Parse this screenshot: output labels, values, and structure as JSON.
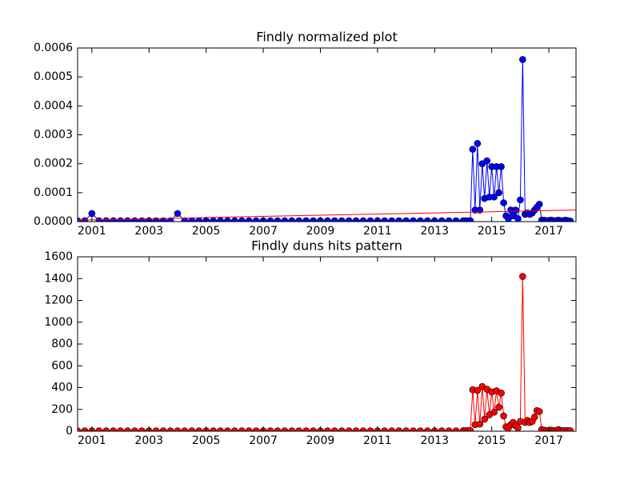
{
  "chart_data": [
    {
      "type": "line",
      "title": "Findly normalized plot",
      "x": [
        2000.5,
        2000.75,
        2001,
        2001.25,
        2001.5,
        2001.75,
        2002,
        2002.25,
        2002.5,
        2002.75,
        2003,
        2003.25,
        2003.5,
        2003.75,
        2004,
        2004.25,
        2004.5,
        2004.75,
        2005,
        2005.25,
        2005.5,
        2005.75,
        2006,
        2006.25,
        2006.5,
        2006.75,
        2007,
        2007.25,
        2007.5,
        2007.75,
        2008,
        2008.25,
        2008.5,
        2008.75,
        2009,
        2009.25,
        2009.5,
        2009.75,
        2010,
        2010.25,
        2010.5,
        2010.75,
        2011,
        2011.25,
        2011.5,
        2011.75,
        2012,
        2012.25,
        2012.5,
        2012.75,
        2013,
        2013.25,
        2013.5,
        2013.75,
        2014,
        2014.083,
        2014.167,
        2014.25,
        2014.333,
        2014.417,
        2014.5,
        2014.583,
        2014.667,
        2014.75,
        2014.833,
        2014.917,
        2015,
        2015.083,
        2015.167,
        2015.25,
        2015.333,
        2015.417,
        2015.5,
        2015.583,
        2015.667,
        2015.75,
        2015.833,
        2015.917,
        2016,
        2016.083,
        2016.167,
        2016.25,
        2016.333,
        2016.417,
        2016.5,
        2016.583,
        2016.667,
        2016.75,
        2016.833,
        2016.917,
        2017,
        2017.083,
        2017.167,
        2017.25,
        2017.333,
        2017.417,
        2017.5,
        2017.583,
        2017.667,
        2017.75
      ],
      "series": [
        {
          "color": "#0000ff",
          "marker": true,
          "values": [
            3e-06,
            3e-06,
            2.8e-05,
            3e-06,
            3e-06,
            3e-06,
            3e-06,
            3e-06,
            3e-06,
            3e-06,
            3e-06,
            3e-06,
            3e-06,
            3e-06,
            2.8e-05,
            3e-06,
            3e-06,
            3e-06,
            3e-06,
            3e-06,
            3e-06,
            3e-06,
            3e-06,
            3e-06,
            3e-06,
            3e-06,
            3e-06,
            3e-06,
            3e-06,
            3e-06,
            3e-06,
            3e-06,
            3e-06,
            3e-06,
            3e-06,
            3e-06,
            3e-06,
            3e-06,
            3e-06,
            3e-06,
            3e-06,
            3e-06,
            3e-06,
            3e-06,
            3e-06,
            3e-06,
            3e-06,
            3e-06,
            3e-06,
            3e-06,
            3e-06,
            3e-06,
            3e-06,
            3e-06,
            3e-06,
            3e-06,
            3e-06,
            3e-06,
            0.00025,
            4e-05,
            0.00027,
            4e-05,
            0.0002,
            8e-05,
            0.00021,
            8.5e-05,
            0.00019,
            8.5e-05,
            0.00019,
            0.0001,
            0.00019,
            6.5e-05,
            2e-05,
            1e-05,
            4e-05,
            2e-05,
            4e-05,
            1e-05,
            7.5e-05,
            0.00056,
            2.5e-05,
            3e-05,
            2.5e-05,
            3e-05,
            4e-05,
            5e-05,
            6e-05,
            5e-06,
            5e-06,
            3e-06,
            3e-06,
            5e-06,
            3e-06,
            3e-06,
            5e-06,
            3e-06,
            3e-06,
            5e-06,
            3e-06,
            2e-06
          ]
        },
        {
          "color": "#ff0000",
          "marker": false,
          "x": [
            2000.5,
            2017.95
          ],
          "values": [
            5e-06,
            4e-05
          ]
        }
      ],
      "xlim": [
        2000.5,
        2017.95
      ],
      "xticks": [
        2001,
        2003,
        2005,
        2007,
        2009,
        2011,
        2013,
        2015,
        2017
      ],
      "ylim": [
        0,
        0.0006
      ],
      "yticks": [
        {
          "value": 0,
          "label": "0.0000"
        },
        {
          "value": 0.0001,
          "label": "0.0001"
        },
        {
          "value": 0.0002,
          "label": "0.0002"
        },
        {
          "value": 0.0003,
          "label": "0.0003"
        },
        {
          "value": 0.0004,
          "label": "0.0004"
        },
        {
          "value": 0.0005,
          "label": "0.0005"
        },
        {
          "value": 0.0006,
          "label": "0.0006"
        }
      ]
    },
    {
      "type": "line",
      "title": "Findly duns hits pattern",
      "x": [
        2000.5,
        2000.75,
        2001,
        2001.25,
        2001.5,
        2001.75,
        2002,
        2002.25,
        2002.5,
        2002.75,
        2003,
        2003.25,
        2003.5,
        2003.75,
        2004,
        2004.25,
        2004.5,
        2004.75,
        2005,
        2005.25,
        2005.5,
        2005.75,
        2006,
        2006.25,
        2006.5,
        2006.75,
        2007,
        2007.25,
        2007.5,
        2007.75,
        2008,
        2008.25,
        2008.5,
        2008.75,
        2009,
        2009.25,
        2009.5,
        2009.75,
        2010,
        2010.25,
        2010.5,
        2010.75,
        2011,
        2011.25,
        2011.5,
        2011.75,
        2012,
        2012.25,
        2012.5,
        2012.75,
        2013,
        2013.25,
        2013.5,
        2013.75,
        2014,
        2014.083,
        2014.167,
        2014.25,
        2014.333,
        2014.417,
        2014.5,
        2014.583,
        2014.667,
        2014.75,
        2014.833,
        2014.917,
        2015,
        2015.083,
        2015.167,
        2015.25,
        2015.333,
        2015.417,
        2015.5,
        2015.583,
        2015.667,
        2015.75,
        2015.833,
        2015.917,
        2016,
        2016.083,
        2016.167,
        2016.25,
        2016.333,
        2016.417,
        2016.5,
        2016.583,
        2016.667,
        2016.75,
        2016.833,
        2016.917,
        2017,
        2017.083,
        2017.167,
        2017.25,
        2017.333,
        2017.417,
        2017.5,
        2017.583,
        2017.667,
        2017.75
      ],
      "series": [
        {
          "color": "#ff0000",
          "marker": true,
          "values": [
            3,
            3,
            3,
            3,
            3,
            3,
            3,
            3,
            3,
            3,
            3,
            3,
            3,
            3,
            3,
            3,
            3,
            3,
            3,
            3,
            3,
            3,
            3,
            3,
            3,
            3,
            3,
            3,
            3,
            3,
            3,
            3,
            3,
            3,
            3,
            3,
            3,
            3,
            3,
            3,
            3,
            3,
            3,
            3,
            3,
            3,
            3,
            3,
            3,
            3,
            3,
            3,
            3,
            3,
            5,
            5,
            5,
            5,
            380,
            60,
            375,
            65,
            410,
            110,
            385,
            150,
            360,
            175,
            370,
            220,
            350,
            140,
            40,
            30,
            60,
            80,
            50,
            30,
            90,
            1420,
            80,
            100,
            80,
            90,
            130,
            190,
            180,
            15,
            10,
            5,
            5,
            10,
            5,
            5,
            15,
            5,
            5,
            5,
            5,
            5
          ]
        }
      ],
      "xlim": [
        2000.5,
        2017.95
      ],
      "xticks": [
        2001,
        2003,
        2005,
        2007,
        2009,
        2011,
        2013,
        2015,
        2017
      ],
      "ylim": [
        0,
        1600
      ],
      "yticks": [
        0,
        200,
        400,
        600,
        800,
        1000,
        1200,
        1400,
        1600
      ]
    }
  ]
}
